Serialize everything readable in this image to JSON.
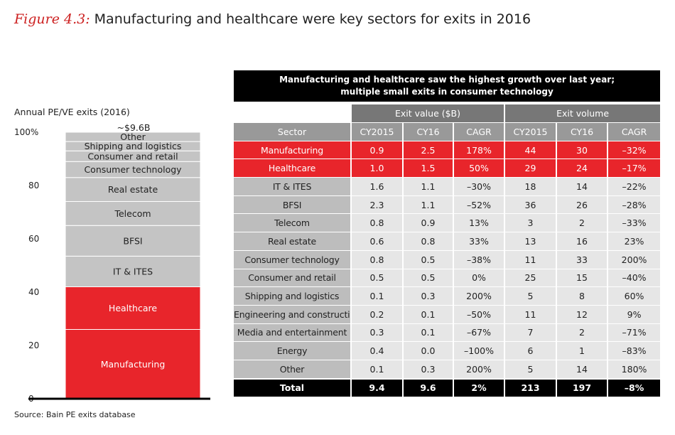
{
  "title": {
    "figure": "Figure 4.3:",
    "text": "Manufacturing and healthcare were key sectors for exits in 2016"
  },
  "chart_data": {
    "type": "bar",
    "stacked": true,
    "title": "Annual PE/VE exits (2016)",
    "total_label": "~$9.6B",
    "ylabel": "",
    "ylim": [
      0,
      100
    ],
    "yticks": [
      0,
      20,
      40,
      60,
      80,
      100
    ],
    "ytick_labels": [
      "0",
      "20",
      "40",
      "60",
      "80",
      "100%"
    ],
    "segments": [
      {
        "name": "Manufacturing",
        "value": 26,
        "color": "#e8252b",
        "text_color": "#ffffff"
      },
      {
        "name": "Healthcare",
        "value": 16,
        "color": "#e8252b",
        "text_color": "#ffffff"
      },
      {
        "name": "IT & ITES",
        "value": 11.5,
        "color": "#c4c4c4",
        "text_color": "#222222"
      },
      {
        "name": "BFSI",
        "value": 11.5,
        "color": "#c4c4c4",
        "text_color": "#222222"
      },
      {
        "name": "Telecom",
        "value": 9,
        "color": "#c4c4c4",
        "text_color": "#222222"
      },
      {
        "name": "Real estate",
        "value": 9,
        "color": "#c4c4c4",
        "text_color": "#222222"
      },
      {
        "name": "Consumer technology",
        "value": 6,
        "color": "#c4c4c4",
        "text_color": "#222222"
      },
      {
        "name": "Consumer and retail",
        "value": 4,
        "color": "#c4c4c4",
        "text_color": "#222222"
      },
      {
        "name": "Shipping and logistics",
        "value": 3.5,
        "color": "#c4c4c4",
        "text_color": "#222222"
      },
      {
        "name": "Other",
        "value": 3.5,
        "color": "#c4c4c4",
        "text_color": "#222222"
      }
    ]
  },
  "table": {
    "banner": [
      "Manufacturing and healthcare saw the highest growth over last year;",
      "multiple small exits in consumer technology"
    ],
    "groups": {
      "value": "Exit value ($B)",
      "volume": "Exit volume"
    },
    "columns": [
      "Sector",
      "CY2015",
      "CY16",
      "CAGR",
      "CY2015",
      "CY16",
      "CAGR"
    ],
    "rows": [
      {
        "highlight": true,
        "cells": [
          "Manufacturing",
          "0.9",
          "2.5",
          "178%",
          "44",
          "30",
          "–32%"
        ]
      },
      {
        "highlight": true,
        "cells": [
          "Healthcare",
          "1.0",
          "1.5",
          "50%",
          "29",
          "24",
          "–17%"
        ]
      },
      {
        "highlight": false,
        "cells": [
          "IT & ITES",
          "1.6",
          "1.1",
          "–30%",
          "18",
          "14",
          "–22%"
        ]
      },
      {
        "highlight": false,
        "cells": [
          "BFSI",
          "2.3",
          "1.1",
          "–52%",
          "36",
          "26",
          "–28%"
        ]
      },
      {
        "highlight": false,
        "cells": [
          "Telecom",
          "0.8",
          "0.9",
          "13%",
          "3",
          "2",
          "–33%"
        ]
      },
      {
        "highlight": false,
        "cells": [
          "Real estate",
          "0.6",
          "0.8",
          "33%",
          "13",
          "16",
          "23%"
        ]
      },
      {
        "highlight": false,
        "cells": [
          "Consumer technology",
          "0.8",
          "0.5",
          "–38%",
          "11",
          "33",
          "200%"
        ]
      },
      {
        "highlight": false,
        "cells": [
          "Consumer and retail",
          "0.5",
          "0.5",
          "0%",
          "25",
          "15",
          "–40%"
        ]
      },
      {
        "highlight": false,
        "cells": [
          "Shipping and logistics",
          "0.1",
          "0.3",
          "200%",
          "5",
          "8",
          "60%"
        ]
      },
      {
        "highlight": false,
        "cells": [
          "Engineering and construction",
          "0.2",
          "0.1",
          "–50%",
          "11",
          "12",
          "9%"
        ]
      },
      {
        "highlight": false,
        "cells": [
          "Media and entertainment",
          "0.3",
          "0.1",
          "–67%",
          "7",
          "2",
          "–71%"
        ]
      },
      {
        "highlight": false,
        "cells": [
          "Energy",
          "0.4",
          "0.0",
          "–100%",
          "6",
          "1",
          "–83%"
        ]
      },
      {
        "highlight": false,
        "cells": [
          "Other",
          "0.1",
          "0.3",
          "200%",
          "5",
          "14",
          "180%"
        ]
      }
    ],
    "total": [
      "Total",
      "9.4",
      "9.6",
      "2%",
      "213",
      "197",
      "–8%"
    ]
  },
  "source": "Source: Bain PE exits database"
}
